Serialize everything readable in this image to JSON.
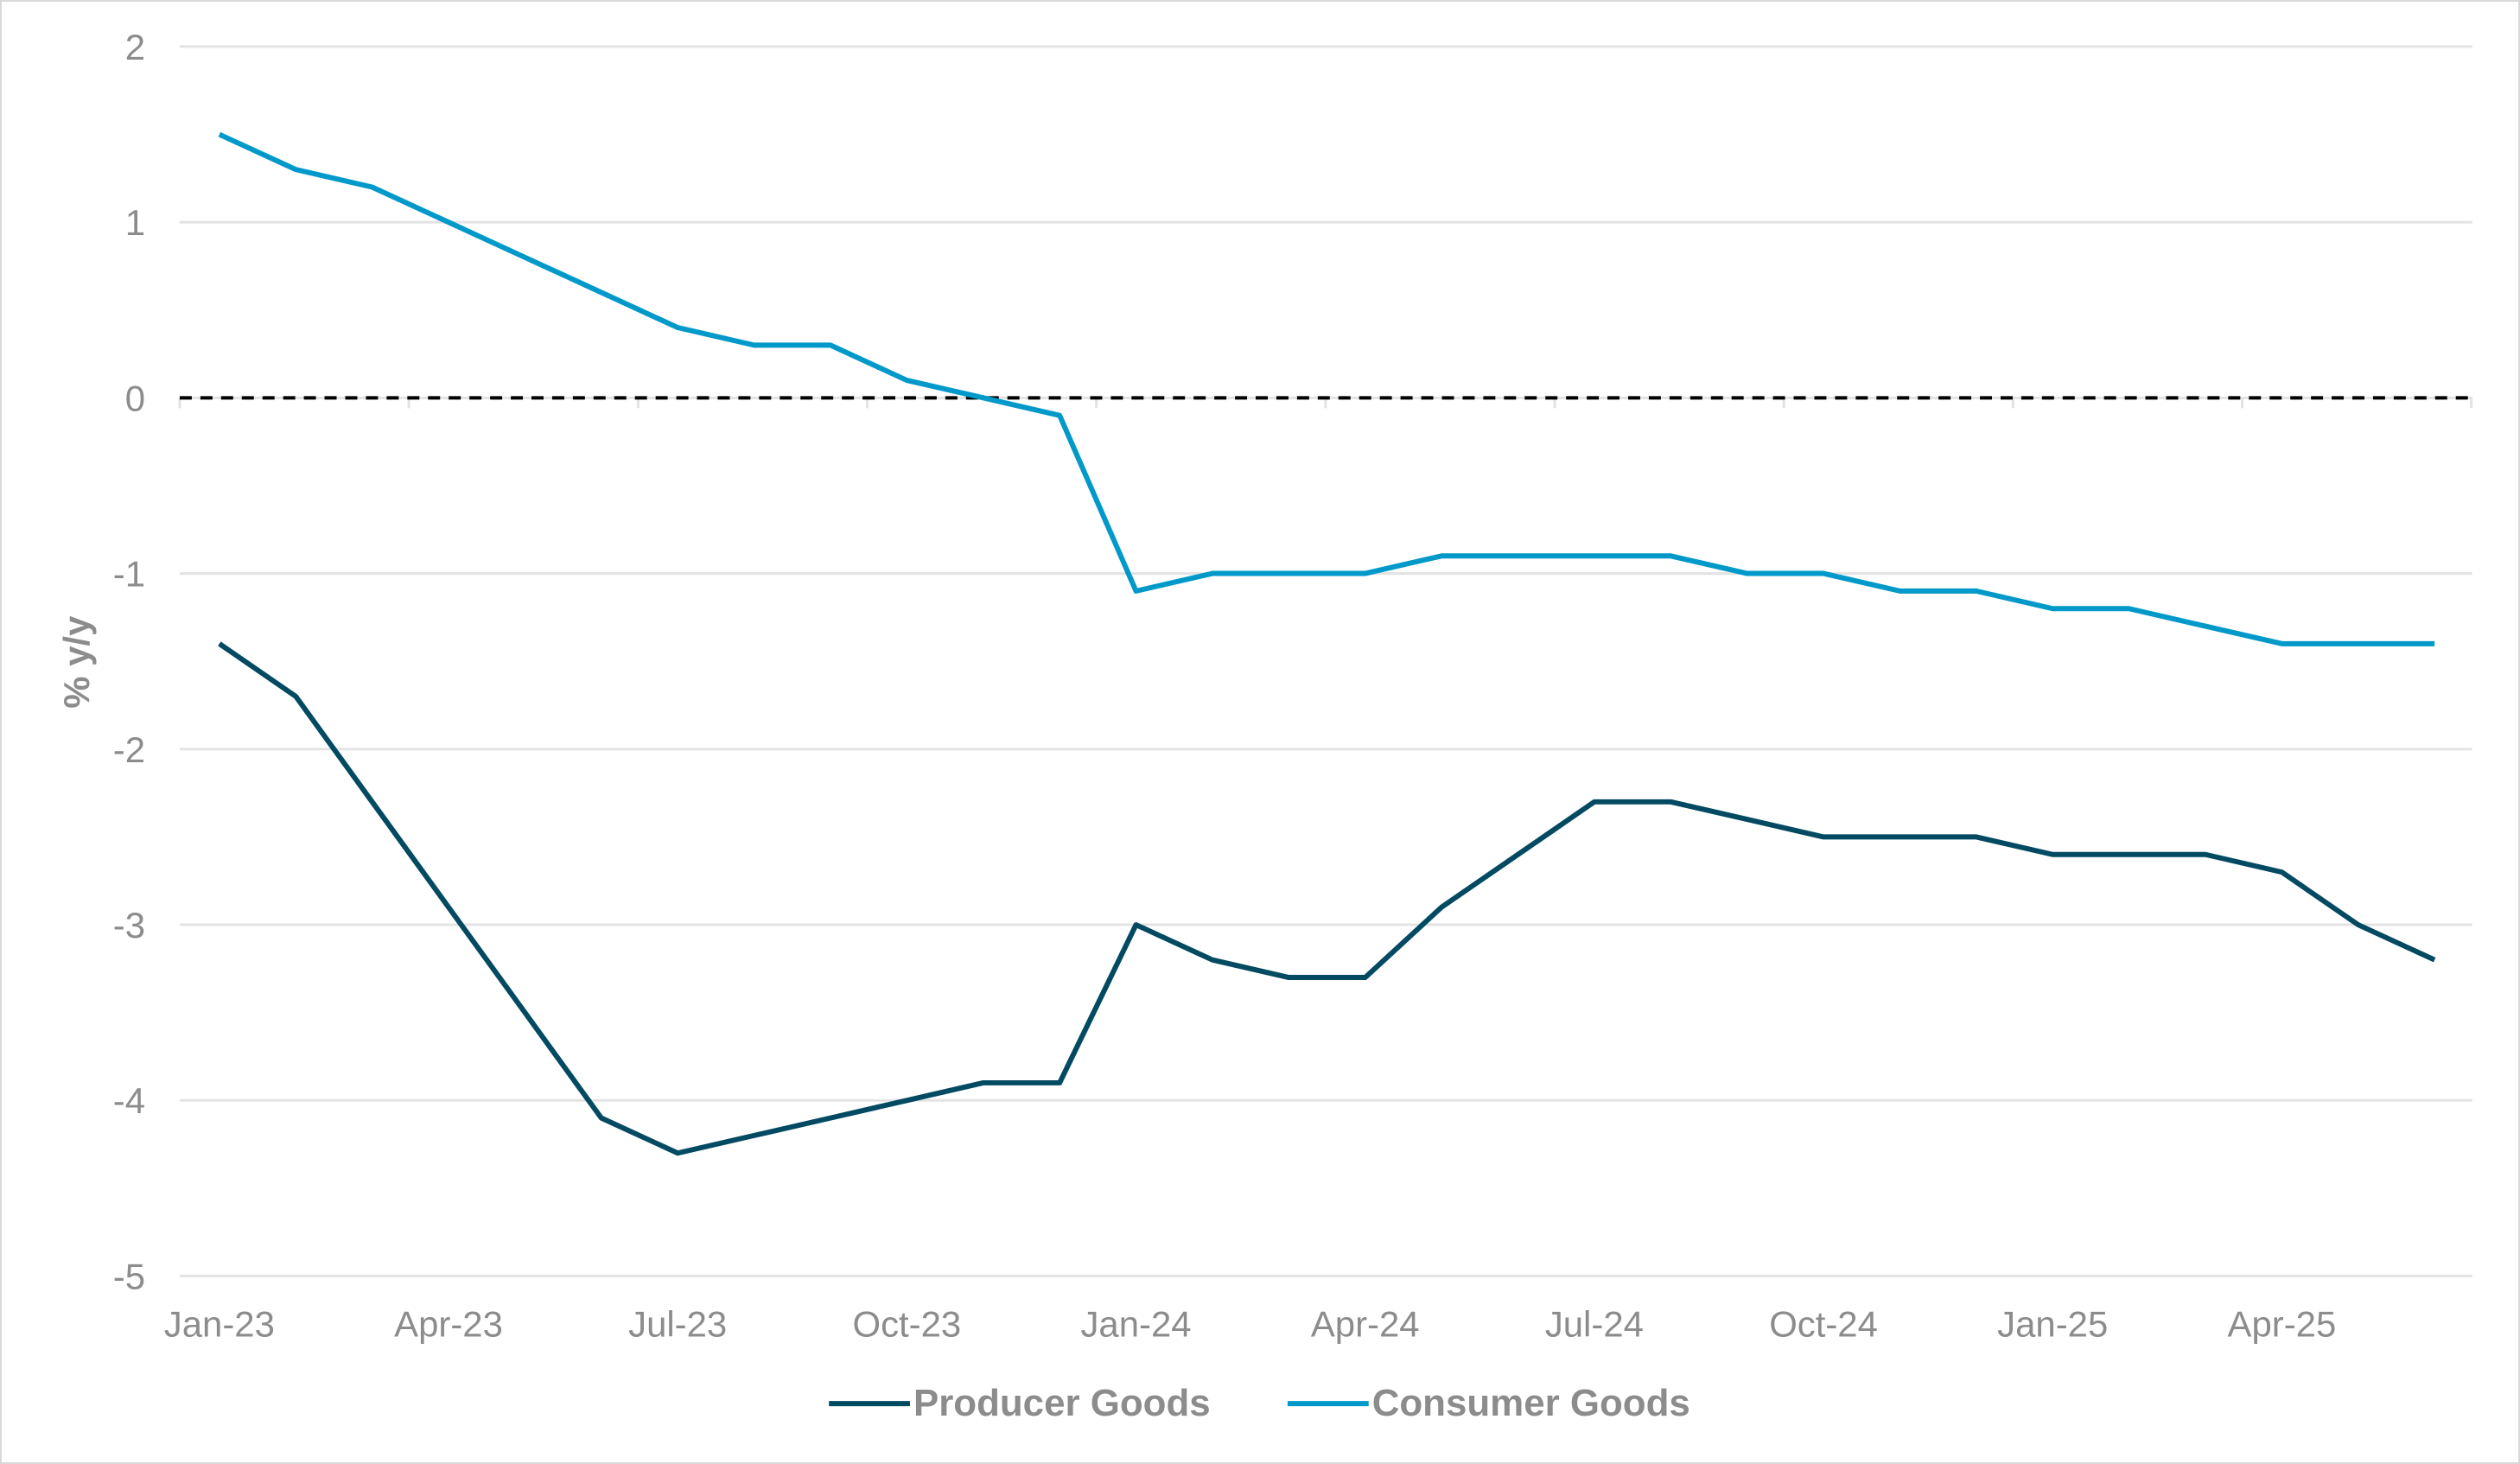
{
  "chart_data": {
    "type": "line",
    "title": "",
    "xlabel": "",
    "ylabel": "% y/y",
    "ylim": [
      -5,
      2
    ],
    "yticks": [
      "2",
      "1",
      "0",
      "-1",
      "-2",
      "-3",
      "-4",
      "-5"
    ],
    "xtick_labels": [
      "Jan-23",
      "Apr-23",
      "Jul-23",
      "Oct-23",
      "Jan-24",
      "Apr-24",
      "Jul-24",
      "Oct-24",
      "Jan-25",
      "Apr-25"
    ],
    "x": [
      "Jan-23",
      "Feb-23",
      "Mar-23",
      "Apr-23",
      "May-23",
      "Jun-23",
      "Jul-23",
      "Aug-23",
      "Sep-23",
      "Oct-23",
      "Nov-23",
      "Dec-23",
      "Jan-24",
      "Feb-24",
      "Mar-24",
      "Apr-24",
      "May-24",
      "Jun-24",
      "Jul-24",
      "Aug-24",
      "Sep-24",
      "Oct-24",
      "Nov-24",
      "Dec-24",
      "Jan-25",
      "Feb-25",
      "Mar-25",
      "Apr-25",
      "May-25",
      "Jun-25"
    ],
    "grid": "horizontal",
    "reference_line": {
      "y": 0,
      "style": "dashed",
      "color": "#000000"
    },
    "legend_position": "bottom",
    "series": [
      {
        "name": "Producer Goods",
        "color": "#024a62",
        "values": [
          -1.4,
          -1.7,
          -2.3,
          -2.9,
          -3.5,
          -4.1,
          -4.3,
          -4.2,
          -4.1,
          -4.0,
          -3.9,
          -3.9,
          -3.0,
          -3.2,
          -3.3,
          -3.3,
          -2.9,
          -2.6,
          -2.3,
          -2.3,
          -2.4,
          -2.5,
          -2.5,
          -2.5,
          -2.6,
          -2.6,
          -2.6,
          -2.7,
          -3.0,
          -3.2
        ]
      },
      {
        "name": "Consumer Goods",
        "color": "#0099c9",
        "values": [
          1.5,
          1.3,
          1.2,
          1.0,
          0.8,
          0.6,
          0.4,
          0.3,
          0.3,
          0.1,
          0.0,
          -0.1,
          -1.1,
          -1.0,
          -1.0,
          -1.0,
          -0.9,
          -0.9,
          -0.9,
          -0.9,
          -1.0,
          -1.0,
          -1.1,
          -1.1,
          -1.2,
          -1.2,
          -1.3,
          -1.4,
          -1.4,
          -1.4
        ]
      }
    ]
  }
}
